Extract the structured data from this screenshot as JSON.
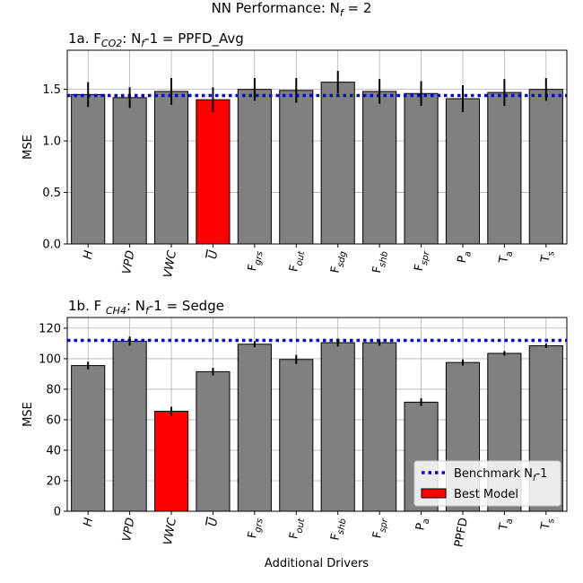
{
  "figure_title": {
    "main": "NN Performance: N",
    "sub": "f",
    "tail": " = 2"
  },
  "xlabel": "Additional Drivers",
  "legend": {
    "entries": [
      {
        "label_main": "Benchmark N",
        "label_sub": "f",
        "label_tail": "-1",
        "color": "#0000ee",
        "style": "dotted"
      },
      {
        "label_main": "Best Model",
        "label_sub": "",
        "label_tail": "",
        "color": "#ff0000",
        "style": "patch"
      }
    ],
    "placement": "lower-right"
  },
  "colors": {
    "bar_default": "#808080",
    "bar_best": "#ff0000",
    "benchmark": "#0000ee",
    "grid": "#b0b0b0",
    "errorbar": "#000000"
  },
  "chart_data": [
    {
      "type": "bar",
      "title_parts": [
        {
          "t": "1a. F",
          "s": "normal"
        },
        {
          "t": "CO2",
          "s": "sub-italic"
        },
        {
          "t": ": N",
          "s": "normal"
        },
        {
          "t": "f",
          "s": "sub-italic"
        },
        {
          "t": "-1 = PPFD_Avg",
          "s": "normal"
        }
      ],
      "ylabel": "MSE",
      "ylim": [
        0,
        1.88
      ],
      "yticks": [
        0.0,
        0.5,
        1.0,
        1.5
      ],
      "ytick_labels": [
        "0.0",
        "0.5",
        "1.0",
        "1.5"
      ],
      "benchmark": 1.44,
      "grid": true,
      "categories": [
        {
          "main": "H",
          "sub": "",
          "style": "italic"
        },
        {
          "main": "VPD",
          "sub": "",
          "style": "italic"
        },
        {
          "main": "VWC",
          "sub": "",
          "style": "italic"
        },
        {
          "main": "U",
          "sub": "",
          "style": "overline-italic"
        },
        {
          "main": "F",
          "sub": "grs",
          "style": "normal"
        },
        {
          "main": "F",
          "sub": "out",
          "style": "normal"
        },
        {
          "main": "F",
          "sub": "sdg",
          "style": "normal"
        },
        {
          "main": "F",
          "sub": "shb",
          "style": "normal"
        },
        {
          "main": "F",
          "sub": "spr",
          "style": "normal"
        },
        {
          "main": "P",
          "sub": "a",
          "style": "normal"
        },
        {
          "main": "T",
          "sub": "a",
          "style": "normal"
        },
        {
          "main": "T",
          "sub": "s",
          "style": "normal"
        }
      ],
      "values": [
        1.45,
        1.42,
        1.48,
        1.4,
        1.5,
        1.49,
        1.57,
        1.48,
        1.46,
        1.41,
        1.47,
        1.5
      ],
      "errors": [
        0.12,
        0.1,
        0.13,
        0.12,
        0.11,
        0.12,
        0.11,
        0.12,
        0.12,
        0.13,
        0.13,
        0.11
      ],
      "best_index": 3
    },
    {
      "type": "bar",
      "title_parts": [
        {
          "t": "1b. F ",
          "s": "normal"
        },
        {
          "t": "CH4",
          "s": "sub-italic"
        },
        {
          "t": ": N",
          "s": "normal"
        },
        {
          "t": "f",
          "s": "sub-italic"
        },
        {
          "t": "-1 = Sedge",
          "s": "normal"
        }
      ],
      "ylabel": "MSE",
      "ylim": [
        0,
        127
      ],
      "yticks": [
        0,
        20,
        40,
        60,
        80,
        100,
        120
      ],
      "ytick_labels": [
        "0",
        "20",
        "40",
        "60",
        "80",
        "100",
        "120"
      ],
      "benchmark": 112,
      "grid": true,
      "categories": [
        {
          "main": "H",
          "sub": "",
          "style": "italic"
        },
        {
          "main": "VPD",
          "sub": "",
          "style": "italic"
        },
        {
          "main": "VWC",
          "sub": "",
          "style": "italic"
        },
        {
          "main": "U",
          "sub": "",
          "style": "overline-italic"
        },
        {
          "main": "F",
          "sub": "grs",
          "style": "normal"
        },
        {
          "main": "F",
          "sub": "out",
          "style": "normal"
        },
        {
          "main": "F",
          "sub": "shb",
          "style": "normal"
        },
        {
          "main": "F",
          "sub": "spr",
          "style": "normal"
        },
        {
          "main": "P",
          "sub": "a",
          "style": "normal"
        },
        {
          "main": "PPFD",
          "sub": "",
          "style": "normal"
        },
        {
          "main": "T",
          "sub": "a",
          "style": "normal"
        },
        {
          "main": "T",
          "sub": "s",
          "style": "normal"
        }
      ],
      "values": [
        95.5,
        111.5,
        65.5,
        91.5,
        109.5,
        99.5,
        110.5,
        110.5,
        71.5,
        97.5,
        103.5,
        108.5
      ],
      "errors": [
        2.5,
        3.0,
        3.0,
        2.5,
        2.0,
        3.0,
        2.5,
        2.0,
        2.5,
        2.0,
        1.5,
        1.5
      ],
      "best_index": 2
    }
  ]
}
